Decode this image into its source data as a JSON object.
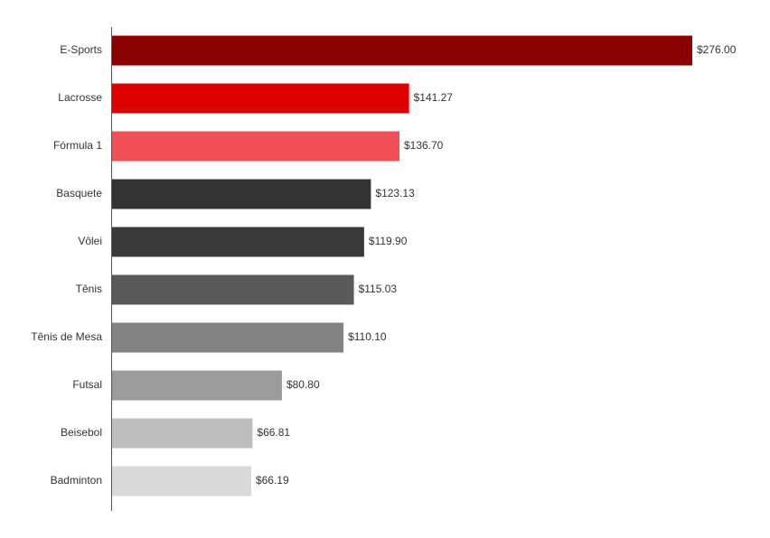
{
  "chart_data": {
    "type": "barh",
    "categories": [
      "E-Sports",
      "Lacrosse",
      "Fórmula 1",
      "Basquete",
      "Vôlei",
      "Tênis",
      "Tênis de Mesa",
      "Futsal",
      "Beisebol",
      "Badminton"
    ],
    "values": [
      276.0,
      141.27,
      136.7,
      123.13,
      119.9,
      115.03,
      110.1,
      80.8,
      66.81,
      66.19
    ],
    "value_labels": [
      "$276.00",
      "$141.27",
      "$136.70",
      "$123.13",
      "$119.90",
      "$115.03",
      "$110.10",
      "$80.80",
      "$66.81",
      "$66.19"
    ],
    "colors": [
      "#8b0000",
      "#dc0000",
      "#ef4f55",
      "#333333",
      "#3a3a3a",
      "#595959",
      "#838383",
      "#9b9b9b",
      "#bebebe",
      "#d9d9d9"
    ],
    "xlim": [
      0,
      276
    ]
  }
}
